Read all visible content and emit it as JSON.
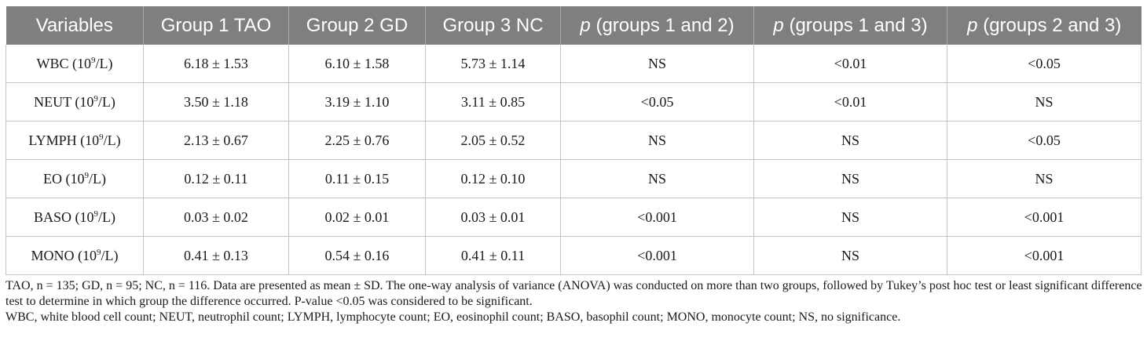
{
  "table": {
    "headers": [
      {
        "prefix": "",
        "italic": "",
        "text": "Variables"
      },
      {
        "prefix": "",
        "italic": "",
        "text": "Group 1 TAO"
      },
      {
        "prefix": "",
        "italic": "",
        "text": "Group 2 GD"
      },
      {
        "prefix": "",
        "italic": "",
        "text": "Group 3 NC"
      },
      {
        "prefix": "",
        "italic": "p",
        "text": " (groups 1 and 2)"
      },
      {
        "prefix": "",
        "italic": "p",
        "text": " (groups 1 and 3)"
      },
      {
        "prefix": "",
        "italic": "p",
        "text": " (groups 2 and 3)"
      }
    ],
    "rows": [
      {
        "var_name": "WBC (10",
        "var_exp": "9",
        "var_unit": "/L)",
        "g1": "6.18 ± 1.53",
        "g2": "6.10 ± 1.58",
        "g3": "5.73 ± 1.14",
        "p12": "NS",
        "p13": "<0.01",
        "p23": "<0.05"
      },
      {
        "var_name": "NEUT (10",
        "var_exp": "9",
        "var_unit": "/L)",
        "g1": "3.50 ± 1.18",
        "g2": "3.19 ± 1.10",
        "g3": "3.11 ± 0.85",
        "p12": "<0.05",
        "p13": "<0.01",
        "p23": "NS"
      },
      {
        "var_name": "LYMPH (10",
        "var_exp": "9",
        "var_unit": "/L)",
        "g1": "2.13 ± 0.67",
        "g2": "2.25 ± 0.76",
        "g3": "2.05 ± 0.52",
        "p12": "NS",
        "p13": "NS",
        "p23": "<0.05"
      },
      {
        "var_name": "EO (10",
        "var_exp": "9",
        "var_unit": "/L)",
        "g1": "0.12 ± 0.11",
        "g2": "0.11 ± 0.15",
        "g3": "0.12 ± 0.10",
        "p12": "NS",
        "p13": "NS",
        "p23": "NS"
      },
      {
        "var_name": "BASO (10",
        "var_exp": "9",
        "var_unit": "/L)",
        "g1": "0.03 ± 0.02",
        "g2": "0.02 ± 0.01",
        "g3": "0.03 ± 0.01",
        "p12": "<0.001",
        "p13": "NS",
        "p23": "<0.001"
      },
      {
        "var_name": "MONO (10",
        "var_exp": "9",
        "var_unit": "/L)",
        "g1": "0.41 ± 0.13",
        "g2": "0.54 ± 0.16",
        "g3": "0.41 ± 0.11",
        "p12": "<0.001",
        "p13": "NS",
        "p23": "<0.001"
      }
    ]
  },
  "notes": {
    "footnote_1": "TAO, n = 135; GD, n = 95; NC, n = 116. Data are presented as mean ± SD. The one-way analysis of variance (ANOVA) was conducted on more than two groups, followed by Tukey’s post hoc test or least significant difference test to determine in which group the difference occurred. P-value <0.05 was considered to be significant.",
    "footnote_2": "WBC, white blood cell count; NEUT, neutrophil count; LYMPH, lymphocyte count; EO, eosinophil count; BASO, basophil count; MONO, monocyte count; NS, no significance."
  },
  "colors": {
    "header_bg": "#7f7f7f",
    "header_text": "#ffffff",
    "grid_line": "#c4c4c4"
  }
}
